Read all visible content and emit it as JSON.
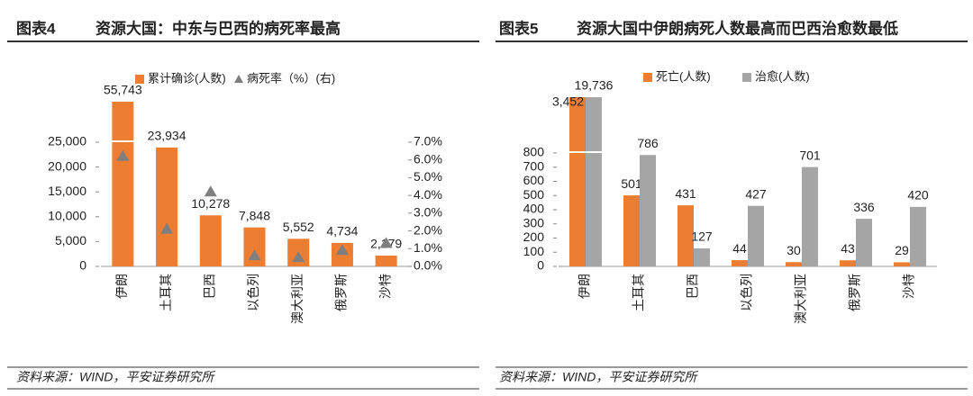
{
  "chart_data": [
    {
      "type": "bar",
      "label": "图表4",
      "title": "资源大国：中东与巴西的病死率最高",
      "categories": [
        "伊朗",
        "土耳其",
        "巴西",
        "以色列",
        "澳大利亚",
        "俄罗斯",
        "沙特"
      ],
      "series": [
        {
          "name": "累计确诊(人数)",
          "color": "#ED7D31",
          "values": [
            55743,
            23934,
            10278,
            7848,
            5552,
            4734,
            2179
          ],
          "value_labels": [
            "55,743",
            "23,934",
            "10,278",
            "7,848",
            "5,552",
            "4,734",
            "2,179"
          ]
        },
        {
          "name": "病死率（%）(右)",
          "color": "#7F7F7F",
          "axis": "y2",
          "marker": "triangle",
          "values": [
            6.2,
            2.1,
            4.2,
            0.6,
            0.5,
            0.9,
            1.3
          ]
        }
      ],
      "ylim": [
        0,
        25000
      ],
      "yticks": [
        0,
        {
          "value": 5000,
          "label": "5,000"
        },
        {
          "value": 10000,
          "label": "10,000"
        },
        {
          "value": 15000,
          "label": "15,000"
        },
        {
          "value": 20000,
          "label": "20,000"
        },
        {
          "value": 25000,
          "label": "25,000"
        }
      ],
      "y2lim": [
        0,
        7
      ],
      "y2ticks": [
        {
          "value": 0,
          "label": "0.0%"
        },
        {
          "value": 1,
          "label": "1.0%"
        },
        {
          "value": 2,
          "label": "2.0%"
        },
        {
          "value": 3,
          "label": "3.0%"
        },
        {
          "value": 4,
          "label": "4.0%"
        },
        {
          "value": 5,
          "label": "5.0%"
        },
        {
          "value": 6,
          "label": "6.0%"
        },
        {
          "value": 7,
          "label": "7.0%"
        }
      ],
      "grid": false,
      "legend": "top",
      "source": "资料来源：WIND，平安证券研究所"
    },
    {
      "type": "bar",
      "label": "图表5",
      "title": "资源大国中伊朗病死人数最高而巴西治愈数最低",
      "categories": [
        "伊朗",
        "土耳其",
        "巴西",
        "以色列",
        "澳大利亚",
        "俄罗斯",
        "沙特"
      ],
      "series": [
        {
          "name": "死亡(人数)",
          "color": "#ED7D31",
          "values": [
            3452,
            501,
            431,
            44,
            30,
            43,
            29
          ],
          "value_labels": [
            "3,452",
            "501",
            "431",
            "44",
            "30",
            "43",
            "29"
          ]
        },
        {
          "name": "治愈(人数)",
          "color": "#A5A5A5",
          "values": [
            19736,
            786,
            127,
            427,
            701,
            336,
            420
          ],
          "value_labels": [
            "19,736",
            "786",
            "127",
            "427",
            "701",
            "336",
            "420"
          ]
        }
      ],
      "ylim": [
        0,
        800
      ],
      "yticks": [
        0,
        100,
        200,
        300,
        400,
        500,
        600,
        700,
        800
      ],
      "grid": false,
      "legend": "top",
      "source": "资料来源：WIND，平安证券研究所"
    }
  ]
}
